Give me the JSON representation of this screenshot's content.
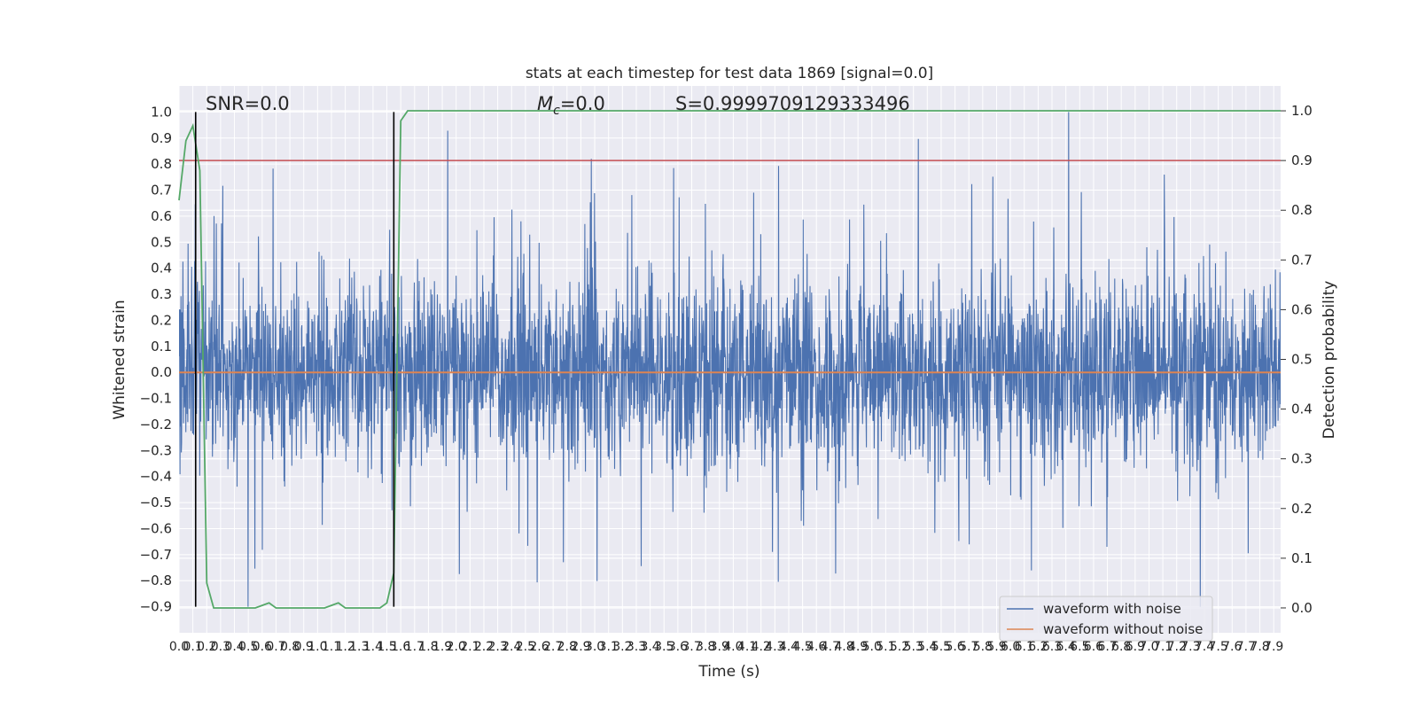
{
  "chart_data": {
    "type": "line",
    "title": "stats at each timestep for test data 1869 [signal=0.0]",
    "xlabel": "Time (s)",
    "ylabel": "Whitened strain",
    "y2label": "Detection probability",
    "xlim": [
      0.0,
      7.95
    ],
    "ylim": [
      -1.0,
      1.1
    ],
    "y2lim": [
      -0.05,
      1.05
    ],
    "yticks": [
      "1.0",
      "0.9",
      "0.8",
      "0.7",
      "0.6",
      "0.5",
      "0.4",
      "0.3",
      "0.2",
      "0.1",
      "0.0",
      "-0.1",
      "-0.2",
      "-0.3",
      "-0.4",
      "-0.5",
      "-0.6",
      "-0.7",
      "-0.8",
      "-0.9"
    ],
    "y2ticks": [
      "1.0",
      "0.9",
      "0.8",
      "0.7",
      "0.6",
      "0.5",
      "0.4",
      "0.3",
      "0.2",
      "0.1",
      "0.0"
    ],
    "xticks": [
      "0.0",
      "0.1",
      "0.2",
      "0.3",
      "0.4",
      "0.5",
      "0.6",
      "0.7",
      "0.8",
      "0.9",
      "1.0",
      "1.1",
      "1.2",
      "1.3",
      "1.4",
      "1.5",
      "1.6",
      "1.7",
      "1.8",
      "1.9",
      "2.0",
      "2.1",
      "2.2",
      "2.3",
      "2.4",
      "2.5",
      "2.6",
      "2.7",
      "2.8",
      "2.9",
      "3.0",
      "3.1",
      "3.2",
      "3.3",
      "3.4",
      "3.5",
      "3.6",
      "3.7",
      "3.8",
      "3.9",
      "4.0",
      "4.1",
      "4.2",
      "4.3",
      "4.4",
      "4.5",
      "4.6",
      "4.7",
      "4.8",
      "4.9",
      "5.0",
      "5.1",
      "5.2",
      "5.3",
      "5.4",
      "5.5",
      "5.6",
      "5.7",
      "5.8",
      "5.9",
      "6.0",
      "6.1",
      "6.2",
      "6.3",
      "6.4",
      "6.5",
      "6.6",
      "6.7",
      "6.8",
      "6.9",
      "7.0",
      "7.1",
      "7.2",
      "7.3",
      "7.4",
      "7.5",
      "7.6",
      "7.7",
      "7.8",
      "7.9"
    ],
    "annotations": {
      "snr": "SNR=0.0",
      "mc_symbol": "M",
      "mc_sub": "c",
      "mc_value": "=0.0",
      "s": "S=0.9999709129333496"
    },
    "series": [
      {
        "name": "waveform with noise",
        "color": "#4c72b0",
        "description": "dense noisy strain, amplitude roughly between -0.9 and 1.0"
      },
      {
        "name": "waveform without noise",
        "color": "#dd8452",
        "values_const": 0.0
      },
      {
        "color": "#55a868",
        "axis": "right",
        "x": [
          0.0,
          0.05,
          0.1,
          0.15,
          0.2,
          0.25,
          0.3,
          0.35,
          0.4,
          0.45,
          0.5,
          0.55,
          0.6,
          0.65,
          0.7,
          0.75,
          0.8,
          0.85,
          0.9,
          0.95,
          1.0,
          1.05,
          1.1,
          1.15,
          1.2,
          1.25,
          1.3,
          1.35,
          1.4,
          1.45,
          1.5,
          1.55,
          1.6,
          1.65,
          1.7,
          1.75,
          7.95
        ],
        "values": [
          0.82,
          0.94,
          0.97,
          0.88,
          0.05,
          0.0,
          0.0,
          0.0,
          0.0,
          0.0,
          0.0,
          0.0,
          0.005,
          0.01,
          0.0,
          0.0,
          0.0,
          0.0,
          0.0,
          0.0,
          0.0,
          0.0,
          0.005,
          0.01,
          0.0,
          0.0,
          0.0,
          0.0,
          0.0,
          0.0,
          0.01,
          0.07,
          0.98,
          1.0,
          1.0,
          1.0,
          1.0
        ]
      }
    ],
    "threshold": {
      "value": 0.9,
      "color": "#c44e52",
      "axis": "right"
    },
    "vlines": [
      0.12,
      1.55
    ],
    "vline_range": [
      -0.9,
      1.0
    ],
    "grid": true,
    "legend": {
      "placement": "bottom-right",
      "entries": [
        "waveform with noise",
        "waveform without noise"
      ]
    }
  }
}
